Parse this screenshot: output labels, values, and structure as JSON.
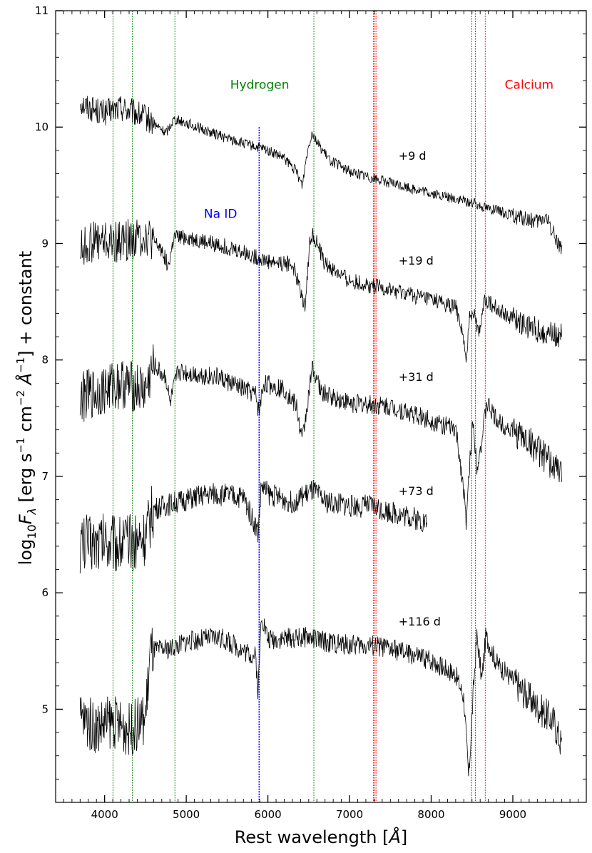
{
  "chart_data": {
    "type": "line",
    "title": "",
    "xlabel_main": "Rest wavelength [",
    "xlabel_unit": "Å",
    "xlabel_end": "]",
    "ylabel_main": "log",
    "ylabel_sub": "10",
    "ylabel_F": "F",
    "ylabel_lambda": "λ",
    "ylabel_rest1": " [erg s",
    "ylabel_sup1": "−1",
    "ylabel_rest2": " cm",
    "ylabel_sup2": "−2",
    "ylabel_A": " Å",
    "ylabel_sup3": "−1",
    "ylabel_rest3": "] + constant",
    "xlim": [
      3400,
      9900
    ],
    "ylim": [
      4.2,
      11
    ],
    "xticks": [
      {
        "value": 4000,
        "label": "4000"
      },
      {
        "value": 5000,
        "label": "5000"
      },
      {
        "value": 6000,
        "label": "6000"
      },
      {
        "value": 7000,
        "label": "7000"
      },
      {
        "value": 8000,
        "label": "8000"
      },
      {
        "value": 9000,
        "label": "9000"
      }
    ],
    "yticks": [
      {
        "value": 5,
        "label": "5"
      },
      {
        "value": 6,
        "label": "6"
      },
      {
        "value": 7,
        "label": "7"
      },
      {
        "value": 8,
        "label": "8"
      },
      {
        "value": 9,
        "label": "9"
      },
      {
        "value": 10,
        "label": "10"
      },
      {
        "value": 11,
        "label": "11"
      }
    ],
    "line_groups": [
      {
        "name": "Hydrogen",
        "color": "#008000",
        "wavelengths": [
          4102,
          4340,
          4861,
          6563
        ],
        "label_x": 5900,
        "label_y": 10.33
      },
      {
        "name": "Na ID",
        "color": "#0000ff",
        "wavelengths": [
          5890,
          5896
        ],
        "label_x": 5420,
        "label_y": 9.22
      },
      {
        "name": "Calcium",
        "color": "#ff0000",
        "wavelengths": [
          7291,
          7308,
          7324,
          8498,
          8542,
          8662
        ],
        "label_x": 9200,
        "label_y": 10.33
      }
    ],
    "series": [
      {
        "name": "+9 d",
        "label_x": 7600,
        "label_y": 9.72,
        "noise": 0.045,
        "xrange": [
          3700,
          9600
        ],
        "points": [
          [
            3700,
            10.22
          ],
          [
            3800,
            10.17
          ],
          [
            4000,
            10.12
          ],
          [
            4200,
            10.17
          ],
          [
            4500,
            10.08
          ],
          [
            4750,
            9.95
          ],
          [
            4850,
            10.07
          ],
          [
            4950,
            10.05
          ],
          [
            5200,
            9.98
          ],
          [
            5600,
            9.88
          ],
          [
            6000,
            9.8
          ],
          [
            6200,
            9.73
          ],
          [
            6350,
            9.62
          ],
          [
            6420,
            9.5
          ],
          [
            6480,
            9.78
          ],
          [
            6540,
            9.96
          ],
          [
            6620,
            9.85
          ],
          [
            6750,
            9.72
          ],
          [
            7000,
            9.62
          ],
          [
            7500,
            9.52
          ],
          [
            8000,
            9.43
          ],
          [
            8500,
            9.35
          ],
          [
            9000,
            9.24
          ],
          [
            9300,
            9.18
          ],
          [
            9400,
            9.23
          ],
          [
            9600,
            8.95
          ]
        ]
      },
      {
        "name": "+19 d",
        "label_x": 7600,
        "label_y": 8.82,
        "noise": 0.07,
        "xrange": [
          3700,
          9600
        ],
        "points": [
          [
            3700,
            8.95
          ],
          [
            3900,
            9.03
          ],
          [
            4100,
            9.0
          ],
          [
            4500,
            9.07
          ],
          [
            4700,
            8.95
          ],
          [
            4780,
            8.8
          ],
          [
            4850,
            9.05
          ],
          [
            5000,
            9.05
          ],
          [
            5500,
            8.97
          ],
          [
            6000,
            8.85
          ],
          [
            6300,
            8.82
          ],
          [
            6400,
            8.6
          ],
          [
            6450,
            8.45
          ],
          [
            6520,
            9.05
          ],
          [
            6560,
            9.08
          ],
          [
            6700,
            8.82
          ],
          [
            7000,
            8.68
          ],
          [
            7500,
            8.6
          ],
          [
            8000,
            8.52
          ],
          [
            8300,
            8.45
          ],
          [
            8380,
            8.25
          ],
          [
            8430,
            7.95
          ],
          [
            8470,
            8.4
          ],
          [
            8530,
            8.42
          ],
          [
            8580,
            8.22
          ],
          [
            8660,
            8.52
          ],
          [
            8700,
            8.5
          ],
          [
            9000,
            8.35
          ],
          [
            9300,
            8.26
          ],
          [
            9600,
            8.2
          ]
        ]
      },
      {
        "name": "+31 d",
        "label_x": 7600,
        "label_y": 7.82,
        "noise": 0.085,
        "xrange": [
          3700,
          9600
        ],
        "points": [
          [
            3700,
            7.68
          ],
          [
            3900,
            7.72
          ],
          [
            4200,
            7.8
          ],
          [
            4500,
            7.74
          ],
          [
            4600,
            7.95
          ],
          [
            4750,
            7.85
          ],
          [
            4800,
            7.62
          ],
          [
            4900,
            7.9
          ],
          [
            5400,
            7.85
          ],
          [
            5850,
            7.7
          ],
          [
            5890,
            7.55
          ],
          [
            5950,
            7.8
          ],
          [
            6200,
            7.75
          ],
          [
            6350,
            7.6
          ],
          [
            6420,
            7.3
          ],
          [
            6480,
            7.6
          ],
          [
            6550,
            7.95
          ],
          [
            6650,
            7.72
          ],
          [
            7000,
            7.63
          ],
          [
            7500,
            7.6
          ],
          [
            8000,
            7.48
          ],
          [
            8300,
            7.4
          ],
          [
            8380,
            7.0
          ],
          [
            8430,
            6.6
          ],
          [
            8480,
            7.2
          ],
          [
            8510,
            7.48
          ],
          [
            8560,
            7.1
          ],
          [
            8620,
            7.3
          ],
          [
            8680,
            7.63
          ],
          [
            8800,
            7.48
          ],
          [
            9200,
            7.3
          ],
          [
            9600,
            7.02
          ]
        ]
      },
      {
        "name": "+73 d",
        "label_x": 7600,
        "label_y": 6.84,
        "noise": 0.1,
        "xrange": [
          3700,
          7950
        ],
        "points": [
          [
            3700,
            6.42
          ],
          [
            4000,
            6.45
          ],
          [
            4300,
            6.42
          ],
          [
            4500,
            6.48
          ],
          [
            4600,
            6.72
          ],
          [
            4900,
            6.78
          ],
          [
            5300,
            6.85
          ],
          [
            5700,
            6.82
          ],
          [
            5880,
            6.52
          ],
          [
            5920,
            6.92
          ],
          [
            6000,
            6.85
          ],
          [
            6300,
            6.78
          ],
          [
            6550,
            6.88
          ],
          [
            6700,
            6.78
          ],
          [
            7000,
            6.75
          ],
          [
            7300,
            6.74
          ],
          [
            7500,
            6.7
          ],
          [
            7700,
            6.66
          ],
          [
            7950,
            6.6
          ]
        ]
      },
      {
        "name": "+116 d",
        "label_x": 7600,
        "label_y": 5.72,
        "noise": 0.09,
        "xrange": [
          3700,
          9600
        ],
        "points": [
          [
            3700,
            4.92
          ],
          [
            3900,
            4.85
          ],
          [
            4100,
            4.9
          ],
          [
            4300,
            4.82
          ],
          [
            4500,
            4.92
          ],
          [
            4560,
            5.5
          ],
          [
            4800,
            5.52
          ],
          [
            5000,
            5.58
          ],
          [
            5400,
            5.62
          ],
          [
            5850,
            5.45
          ],
          [
            5880,
            5.15
          ],
          [
            5920,
            5.82
          ],
          [
            6000,
            5.6
          ],
          [
            6500,
            5.62
          ],
          [
            6700,
            5.58
          ],
          [
            7000,
            5.55
          ],
          [
            7300,
            5.55
          ],
          [
            7600,
            5.5
          ],
          [
            8000,
            5.42
          ],
          [
            8300,
            5.3
          ],
          [
            8400,
            5.1
          ],
          [
            8460,
            4.4
          ],
          [
            8520,
            5.2
          ],
          [
            8560,
            5.63
          ],
          [
            8620,
            5.25
          ],
          [
            8670,
            5.63
          ],
          [
            8800,
            5.4
          ],
          [
            9000,
            5.25
          ],
          [
            9300,
            5.02
          ],
          [
            9500,
            4.9
          ],
          [
            9600,
            4.68
          ]
        ]
      }
    ]
  }
}
